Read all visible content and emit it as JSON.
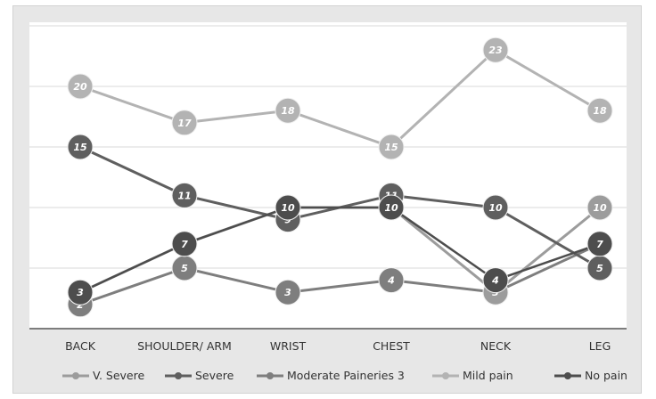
{
  "chart_data": {
    "type": "line",
    "categories": [
      "BACK",
      "SHOULDER/ ARM",
      "WRIST",
      "CHEST",
      "NECK",
      "LEG"
    ],
    "ylim": [
      0,
      25
    ],
    "grid": true,
    "legend_position": "bottom",
    "series": [
      {
        "name": "V. Severe",
        "values": [
          3,
          7,
          10,
          10,
          3,
          10
        ],
        "color": "#9c9c9c"
      },
      {
        "name": "Severe",
        "values": [
          15,
          11,
          9,
          11,
          10,
          5
        ],
        "color": "#5f5f5f"
      },
      {
        "name": "Moderate Paineries 3",
        "values": [
          2,
          5,
          3,
          4,
          3,
          7
        ],
        "color": "#7e7e7e"
      },
      {
        "name": "Mild pain",
        "values": [
          20,
          17,
          18,
          15,
          23,
          18
        ],
        "color": "#b3b3b3"
      },
      {
        "name": "No pain",
        "values": [
          3,
          7,
          10,
          10,
          4,
          7
        ],
        "color": "#4d4d4d"
      }
    ],
    "label_series_colors": [
      [
        [
          "#4d4d4d",
          "#4d4d4d",
          "#4d4d4d",
          "#4d4d4d",
          "#4d4d4d",
          "#4d4d4d"
        ]
      ]
    ]
  }
}
